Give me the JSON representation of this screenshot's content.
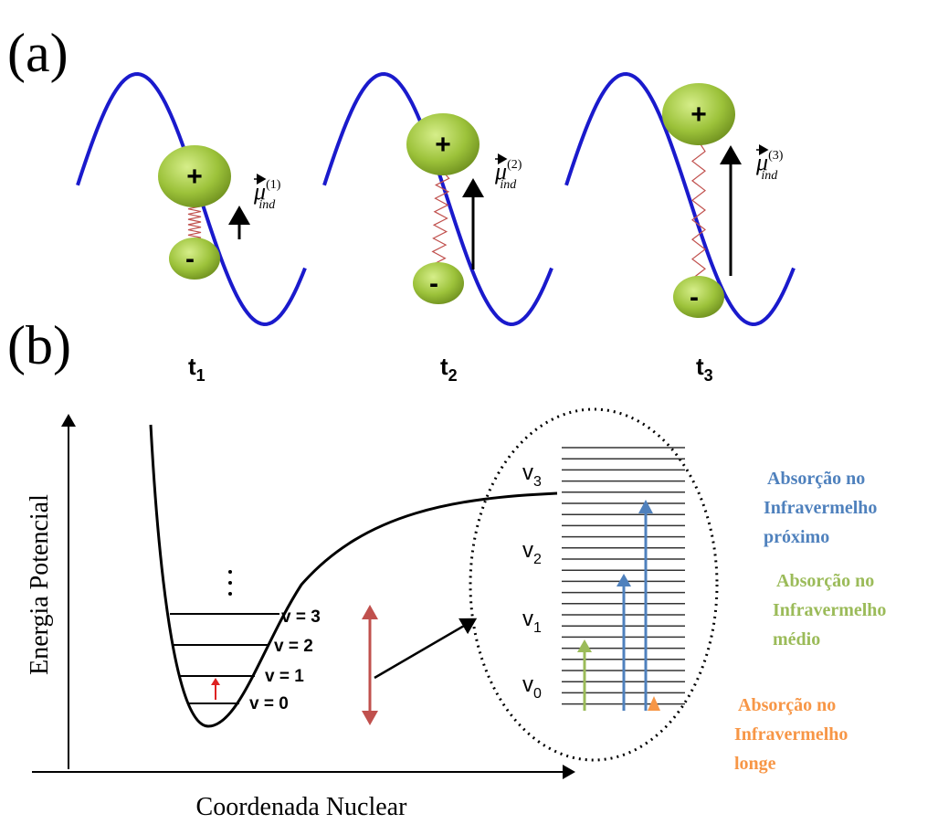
{
  "panels": {
    "a": {
      "label": "(a)",
      "frames": [
        {
          "time": {
            "base": "t",
            "sub": "1"
          },
          "dipole": {
            "base": "μ",
            "sub": "ind",
            "sup": "(1)"
          },
          "plus": "+",
          "minus": "-"
        },
        {
          "time": {
            "base": "t",
            "sub": "2"
          },
          "dipole": {
            "base": "μ",
            "sub": "ind",
            "sup": "(2)"
          },
          "plus": "+",
          "minus": "-"
        },
        {
          "time": {
            "base": "t",
            "sub": "3"
          },
          "dipole": {
            "base": "μ",
            "sub": "ind",
            "sup": "(3)"
          },
          "plus": "+",
          "minus": "-"
        }
      ]
    },
    "b": {
      "label": "(b)",
      "y_axis": "Energia Potencial",
      "x_axis": "Coordenada Nuclear",
      "levels": [
        "v = 0",
        "v = 1",
        "v = 2",
        "v = 3"
      ],
      "inset_levels": [
        {
          "base": "v",
          "sub": "0"
        },
        {
          "base": "v",
          "sub": "1"
        },
        {
          "base": "v",
          "sub": "2"
        },
        {
          "base": "v",
          "sub": "3"
        }
      ],
      "legend": [
        {
          "lines": [
            "Absorção no",
            "Infravermelho",
            "próximo"
          ]
        },
        {
          "lines": [
            "Absorção no",
            "Infravermelho",
            "médio"
          ]
        },
        {
          "lines": [
            "Absorção no",
            "Infravermelho",
            "longe"
          ]
        }
      ]
    }
  }
}
